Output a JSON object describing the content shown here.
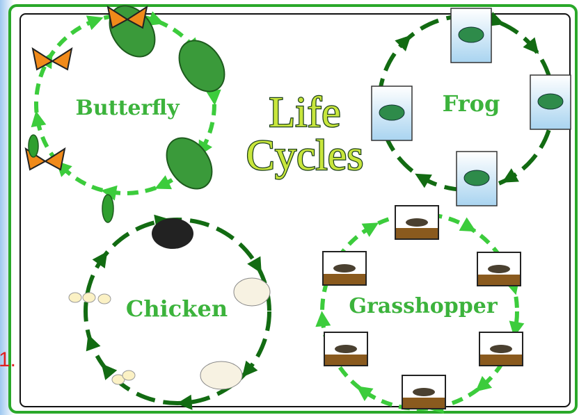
{
  "title": {
    "line1": "Life",
    "line2": "Cycles"
  },
  "cycles": [
    {
      "label": "Butterfly"
    },
    {
      "label": "Frog"
    },
    {
      "label": "Chicken"
    },
    {
      "label": "Grasshopper"
    }
  ],
  "margin_note": "1."
}
